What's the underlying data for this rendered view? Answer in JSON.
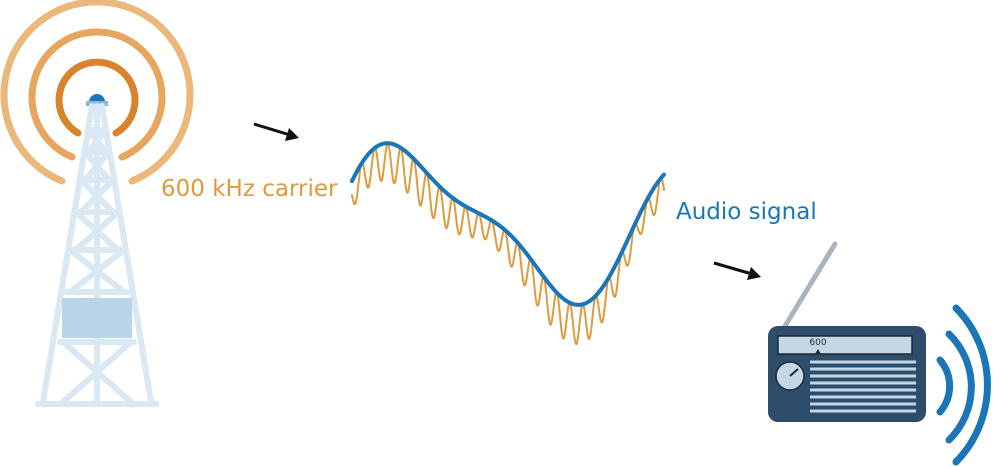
{
  "labels": {
    "carrier": "600 kHz carrier",
    "audio": "Audio signal",
    "dial": "600"
  },
  "colors": {
    "carrier": "#e09a3e",
    "audio": "#1a76b8",
    "tower_light": "#d9e8f3",
    "tower_mid": "#b8d5ea",
    "tower_rings_outer": "#ecb77a",
    "tower_rings_mid": "#e7a55e",
    "tower_rings_inner": "#d9832c",
    "tower_beacon": "#1a76b8",
    "radio_body": "#2e4d6b",
    "radio_face": "#c5d7e6",
    "radio_dark": "#1a2a36",
    "sound_waves": "#1a76b8",
    "arrow": "#111111"
  },
  "icons": [
    "radio-tower-icon",
    "radio-receiver-icon",
    "sound-waves-icon",
    "arrow-icon"
  ]
}
